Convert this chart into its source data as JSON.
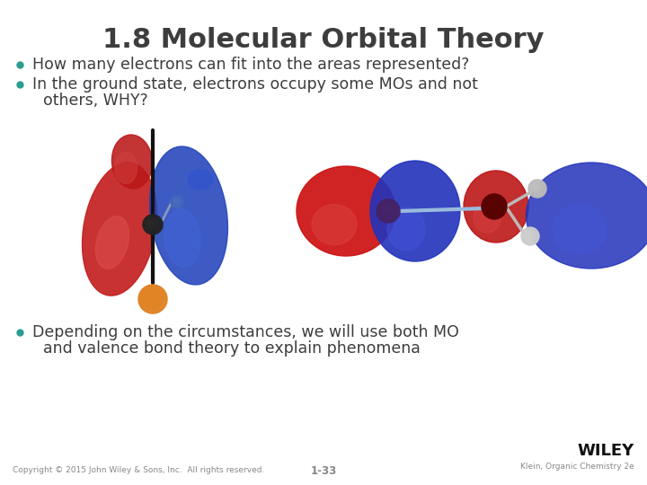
{
  "title": "1.8 Molecular Orbital Theory",
  "bullet1": "How many electrons can fit into the areas represented?",
  "bullet2_line1": "In the ground state, electrons occupy some MOs and not",
  "bullet2_line2": "others, WHY?",
  "bullet3_line1": "Depending on the circumstances, we will use both MO",
  "bullet3_line2": "and valence bond theory to explain phenomena",
  "footer_left": "Copyright © 2015 John Wiley & Sons, Inc.  All rights reserved.",
  "footer_center": "1-33",
  "footer_right": "Klein, Organic Chemistry 2e",
  "footer_wiley": "WILEY",
  "bg_color": "#ffffff",
  "title_color": "#3d3d3d",
  "bullet_color": "#3d3d3d",
  "bullet_dot_color": "#2A9D8F",
  "footer_color": "#888888",
  "title_fontsize": 22,
  "bullet_fontsize": 12.5,
  "footer_fontsize": 6.5,
  "wiley_fontsize": 13
}
